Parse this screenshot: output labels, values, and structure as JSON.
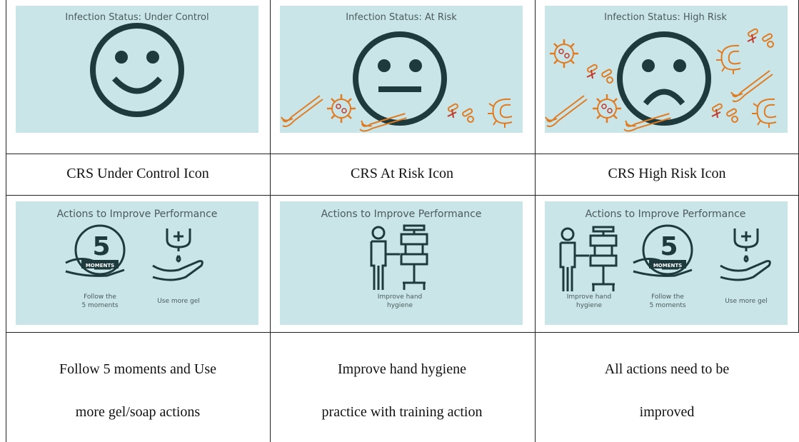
{
  "table": {
    "rows": [
      {
        "cells": [
          {
            "title": "Infection Status: Under Control"
          },
          {
            "title": "Infection Status: At Risk"
          },
          {
            "title": "Infection Status: High Risk"
          }
        ]
      },
      {
        "cells": [
          [
            "CRS Under Control Icon"
          ],
          [
            "CRS At Risk Icon"
          ],
          [
            "CRS High Risk Icon"
          ]
        ]
      },
      {
        "cells": [
          {
            "title": "Actions to Improve Performance",
            "items": [
              [
                "Follow the",
                "5 moments"
              ],
              [
                "Use more gel"
              ]
            ]
          },
          {
            "title": "Actions to Improve Performance",
            "items": [
              [
                "Improve hand",
                "hygiene"
              ]
            ]
          },
          {
            "title": "Actions to Improve Performance",
            "items": [
              [
                "Improve hand",
                "hygiene"
              ],
              [
                "Follow the",
                "5 moments"
              ],
              [
                "Use more gel"
              ]
            ]
          }
        ]
      },
      {
        "cells": [
          [
            "Follow 5 moments and Use",
            "more gel/soap actions"
          ],
          [
            "Improve hand hygiene",
            "practice with training action"
          ],
          [
            "All actions need to be",
            "improved"
          ]
        ]
      }
    ]
  },
  "five_moments_icon": {
    "number": "5",
    "label": "MOMENTS"
  }
}
